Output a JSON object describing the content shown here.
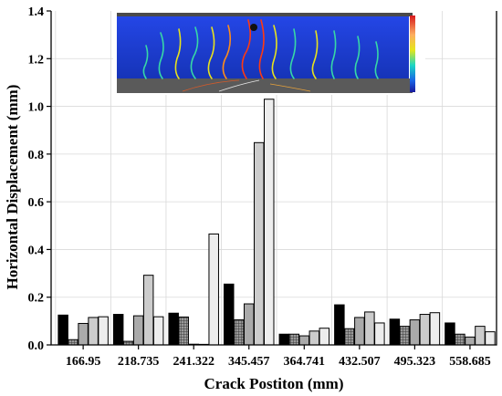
{
  "chart_data": {
    "type": "bar",
    "title": "",
    "xlabel": "Crack Postiton (mm)",
    "ylabel": "Horizontal Displacement (mm)",
    "ylim": [
      0,
      1.4
    ],
    "yticks": [
      "0.0",
      "0.2",
      "0.4",
      "0.6",
      "0.8",
      "1.0",
      "1.2",
      "1.4"
    ],
    "categories": [
      "166.95",
      "218.735",
      "241.322",
      "345.457",
      "364.741",
      "432.507",
      "495.323",
      "558.685"
    ],
    "series": [
      {
        "fill": "black",
        "values": [
          0.125,
          0.128,
          0.133,
          0.255,
          0.045,
          0.168,
          0.108,
          0.092
        ]
      },
      {
        "fill": "crosshatch",
        "values": [
          0.022,
          0.015,
          0.117,
          0.105,
          0.045,
          0.068,
          0.078,
          0.045
        ]
      },
      {
        "fill": "#aaaaaa",
        "values": [
          0.09,
          0.122,
          0.003,
          0.172,
          0.038,
          0.115,
          0.105,
          0.033
        ]
      },
      {
        "fill": "#cccccc",
        "values": [
          0.115,
          0.292,
          0.002,
          0.848,
          0.058,
          0.138,
          0.128,
          0.078
        ]
      },
      {
        "fill": "#ededed",
        "values": [
          0.118,
          0.118,
          0.465,
          1.03,
          0.07,
          0.092,
          0.135,
          0.055
        ]
      }
    ],
    "grid": true,
    "legend": "none",
    "inset": "crack displacement contour photo (blue field with colored crack lines and a color scale bar), top center"
  },
  "colors": {
    "inset_field": "#1e3fd6",
    "crack_hot": "#ff3a10",
    "crack_warm": "#e7e21c",
    "crack_cool": "#37d8a6"
  }
}
